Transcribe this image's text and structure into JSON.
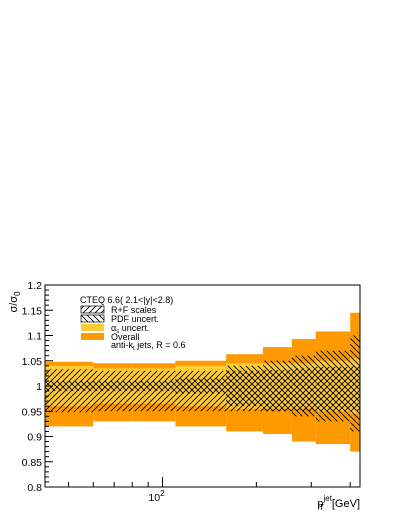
{
  "chart_data": {
    "type": "area",
    "title": "",
    "xlabel": "p_T^jet [GeV]",
    "xlabel_parts": {
      "base": "p",
      "sub": "T",
      "sup": "jet",
      "unit": "[GeV]"
    },
    "ylabel": "σ/σ_0",
    "ylabel_parts": {
      "base": "σ/σ",
      "sub": "0"
    },
    "x_scale": "log",
    "xlim": [
      42,
      430
    ],
    "ylim": [
      0.8,
      1.2
    ],
    "x_tick_labels": [
      {
        "value": 100,
        "base": "10",
        "exp": "2"
      }
    ],
    "y_ticks": [
      0.8,
      0.85,
      0.9,
      0.95,
      1,
      1.05,
      1.1,
      1.15,
      1.2
    ],
    "y_tick_labels": [
      "0.8",
      "0.85",
      "0.9",
      "0.95",
      "1",
      "1.05",
      "1.1",
      "1.15",
      "1.2"
    ],
    "grid": false,
    "bin_edges": [
      42,
      60,
      80,
      110,
      160,
      210,
      260,
      310,
      400,
      430
    ],
    "series": [
      {
        "name": "Overall",
        "color": "#ff9900",
        "pattern": "fill",
        "up": [
          1.048,
          1.045,
          1.045,
          1.05,
          1.063,
          1.077,
          1.093,
          1.108,
          1.145
        ],
        "down": [
          0.92,
          0.93,
          0.93,
          0.92,
          0.91,
          0.905,
          0.89,
          0.885,
          0.87
        ]
      },
      {
        "name": "αs uncert.",
        "color": "#ffcc33",
        "pattern": "fill",
        "up": [
          1.04,
          1.035,
          1.035,
          1.04,
          1.045,
          1.045,
          1.045,
          1.05,
          1.055
        ],
        "down": [
          0.96,
          0.965,
          0.965,
          0.96,
          0.955,
          0.955,
          0.955,
          0.95,
          0.945
        ]
      },
      {
        "name": "PDF uncert.",
        "color": "#000000",
        "pattern": "backslash",
        "up": [
          1.01,
          1.01,
          1.01,
          1.015,
          1.04,
          1.05,
          1.06,
          1.07,
          1.1
        ],
        "down": [
          0.99,
          0.99,
          0.99,
          0.985,
          0.96,
          0.95,
          0.94,
          0.93,
          0.91
        ]
      },
      {
        "name": "R+F scales",
        "color": "#000000",
        "pattern": "slash",
        "up": [
          1.033,
          1.03,
          1.03,
          1.03,
          1.03,
          1.032,
          1.035,
          1.038,
          1.04
        ],
        "down": [
          0.948,
          0.95,
          0.95,
          0.95,
          0.95,
          0.95,
          0.95,
          0.95,
          0.95
        ]
      }
    ],
    "legend_position": "top-left",
    "legend": {
      "header": "CTEQ 6.6( 2.1<|y|<2.8)",
      "entries": [
        {
          "label": "R+F scales",
          "pattern": "slash",
          "color": "#000000"
        },
        {
          "label": "PDF uncert.",
          "pattern": "backslash",
          "color": "#000000"
        },
        {
          "label": "uncert.",
          "symbol_base": "α",
          "symbol_sub": "s",
          "pattern": "fill",
          "color": "#ffcc33"
        },
        {
          "label": "Overall",
          "pattern": "fill",
          "color": "#ff9900"
        }
      ],
      "footer_parts": {
        "pre": "anti-k",
        "sub": "t",
        "post": " jets, R = 0.6"
      }
    }
  }
}
